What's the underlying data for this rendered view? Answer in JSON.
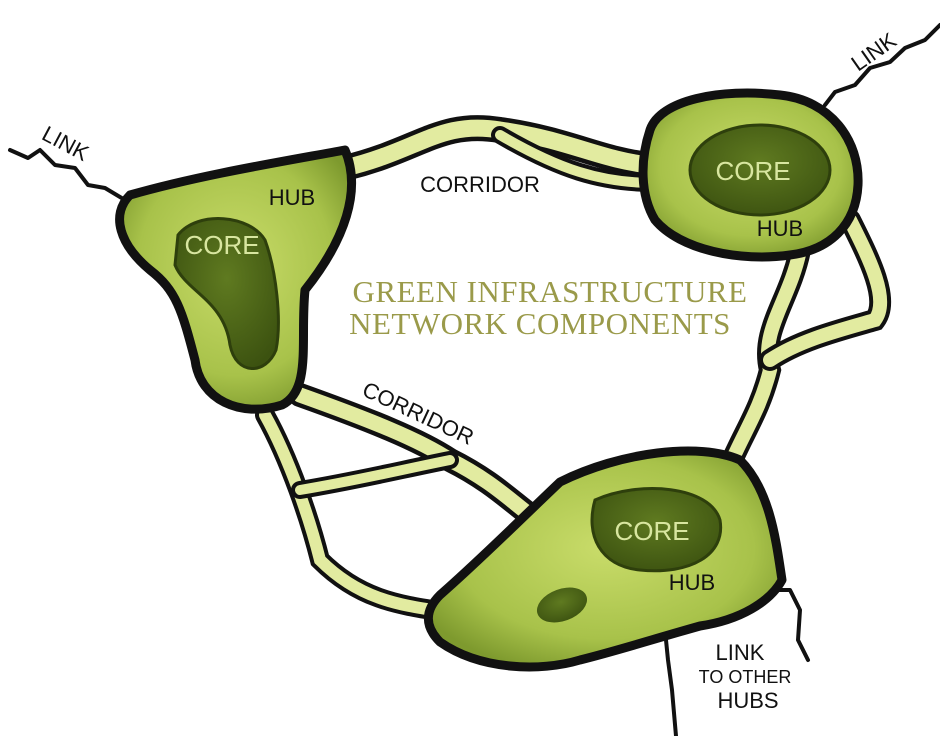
{
  "title": [
    "GREEN INFRASTRUCTURE",
    "NETWORK COMPONENTS"
  ],
  "hubs": [
    {
      "hub": "HUB",
      "core": "CORE"
    },
    {
      "hub": "HUB",
      "core": "CORE"
    },
    {
      "hub": "HUB",
      "core": "CORE"
    }
  ],
  "corridors": [
    "CORRIDOR",
    "CORRIDOR"
  ],
  "links": [
    "LINK",
    "LINK"
  ],
  "link_to_other_hubs": [
    "LINK",
    "TO OTHER",
    "HUBS"
  ]
}
